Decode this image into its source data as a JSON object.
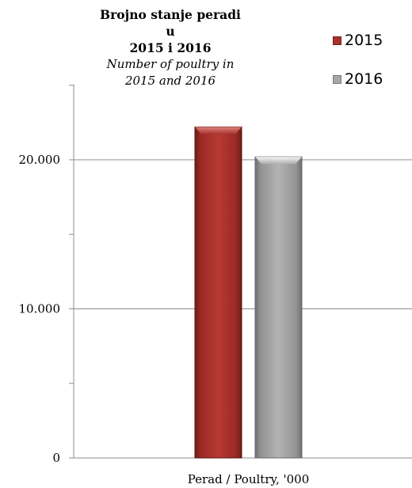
{
  "chart_data": {
    "type": "bar",
    "title": "Brojno stanje peradi u 2015 i 2016",
    "title_lines": [
      "Brojno stanje peradi u",
      "2015 i 2016"
    ],
    "subtitle": "Number of poultry in 2015 and 2016",
    "subtitle_lines": [
      "Number of poultry in",
      "2015 and 2016"
    ],
    "categories": [
      "Perad / Poultry, '000"
    ],
    "series": [
      {
        "name": "2015",
        "values": [
          22200
        ]
      },
      {
        "name": "2016",
        "values": [
          20200
        ]
      }
    ],
    "y_ticks": [
      0,
      10000,
      20000
    ],
    "y_tick_labels": [
      "0",
      "10.000",
      "20.000"
    ],
    "ylim": [
      0,
      25000
    ],
    "grid": true,
    "legend_position": "top-right",
    "colors": {
      "2015": "#a8322c",
      "2016": "#a6a6a6",
      "axis": "#8c8c8c",
      "grid": "#8c8c8c"
    }
  }
}
